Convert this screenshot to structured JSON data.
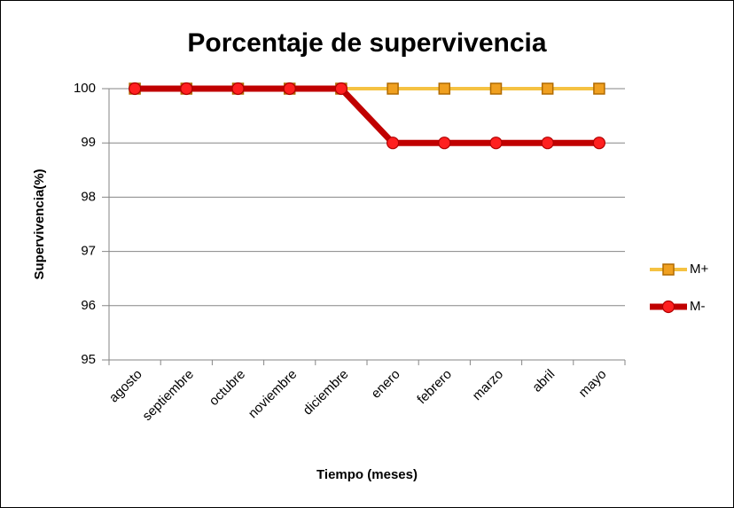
{
  "chart_data": {
    "type": "line",
    "title": "Porcentaje de supervivencia",
    "x_label": "Tiempo (meses)",
    "y_label": "Supervivencia(%)",
    "categories": [
      "agosto",
      "septiembre",
      "octubre",
      "noviembre",
      "diciembre",
      "enero",
      "febrero",
      "marzo",
      "abril",
      "mayo"
    ],
    "series": [
      {
        "name": "M+",
        "color": "#f5c242",
        "marker": "square",
        "values": [
          100,
          100,
          100,
          100,
          100,
          100,
          100,
          100,
          100,
          100
        ]
      },
      {
        "name": "M-",
        "color": "#c00000",
        "marker": "circle",
        "values": [
          100,
          100,
          100,
          100,
          100,
          99,
          99,
          99,
          99,
          99
        ]
      }
    ],
    "ylim": [
      95,
      100
    ],
    "yticks": [
      95,
      96,
      97,
      98,
      99,
      100
    ],
    "grid": true,
    "legend": "right"
  }
}
